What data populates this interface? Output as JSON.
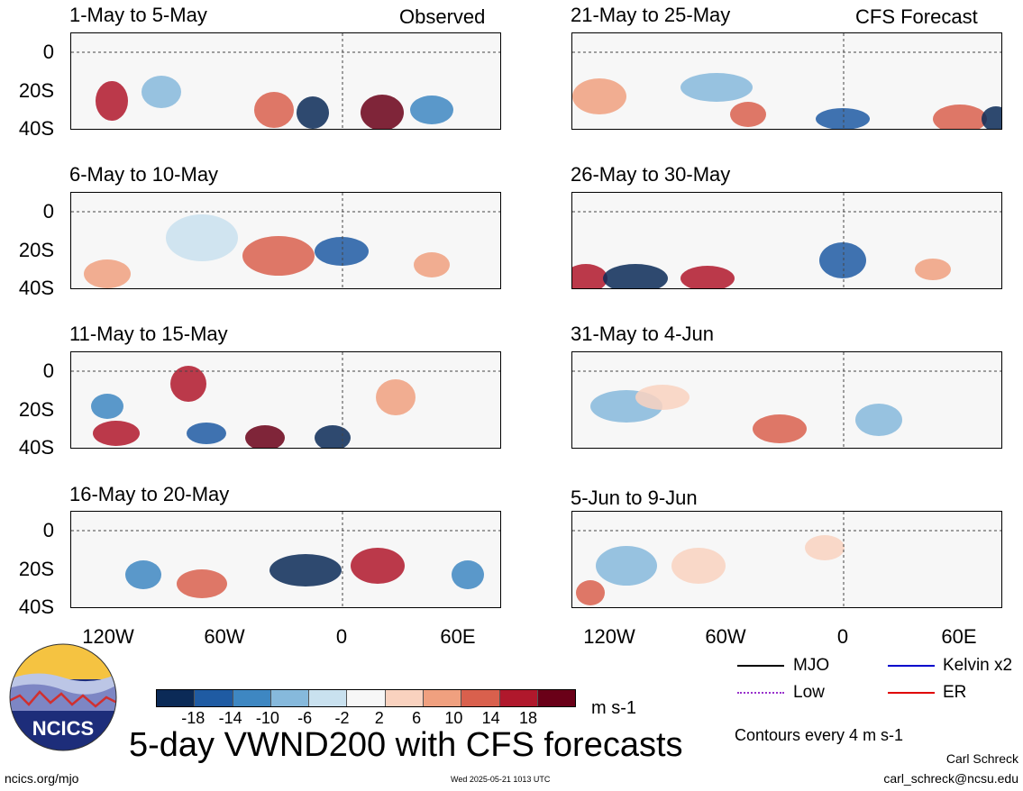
{
  "chart_data": {
    "type": "heatmap",
    "title": "5-day VWND200 with CFS forecasts",
    "units": "m s-1",
    "contour_note": "Contours every 4 m s-1",
    "colorbar_ticks": [
      "-18",
      "-14",
      "-10",
      "-6",
      "-2",
      "2",
      "6",
      "10",
      "14",
      "18"
    ],
    "colorbar_colors": [
      "#0b2a57",
      "#1f5ba3",
      "#3e87c2",
      "#86b9dc",
      "#c9e1ef",
      "#f7f7f7",
      "#f9d2bf",
      "#f0a07f",
      "#d9604d",
      "#b0182c",
      "#6a0018"
    ],
    "ylabels": [
      "0",
      "20S",
      "40S"
    ],
    "xlabels": [
      "120W",
      "60W",
      "0",
      "60E"
    ],
    "panels": [
      {
        "title": "1-May to 5-May",
        "tag": "Observed"
      },
      {
        "title": "6-May to 10-May",
        "tag": ""
      },
      {
        "title": "11-May to 15-May",
        "tag": ""
      },
      {
        "title": "16-May to 20-May",
        "tag": ""
      },
      {
        "title": "21-May to 25-May",
        "tag": "CFS Forecast"
      },
      {
        "title": "26-May to 30-May",
        "tag": ""
      },
      {
        "title": "31-May to 4-Jun",
        "tag": ""
      },
      {
        "title": "5-Jun to 9-Jun",
        "tag": ""
      }
    ],
    "legend": [
      {
        "label": "MJO",
        "color": "#000000"
      },
      {
        "label": "Kelvin x2",
        "color": "#0000cc"
      },
      {
        "label": "Low",
        "color": "#9932cc"
      },
      {
        "label": "ER",
        "color": "#e00000"
      }
    ]
  },
  "logo_text": "NCICS",
  "footer": {
    "site": "ncics.org/mjo",
    "timestamp": "Wed 2025-05-21 1013 UTC",
    "author": "Carl Schreck",
    "email": "carl_schreck@ncsu.edu"
  }
}
